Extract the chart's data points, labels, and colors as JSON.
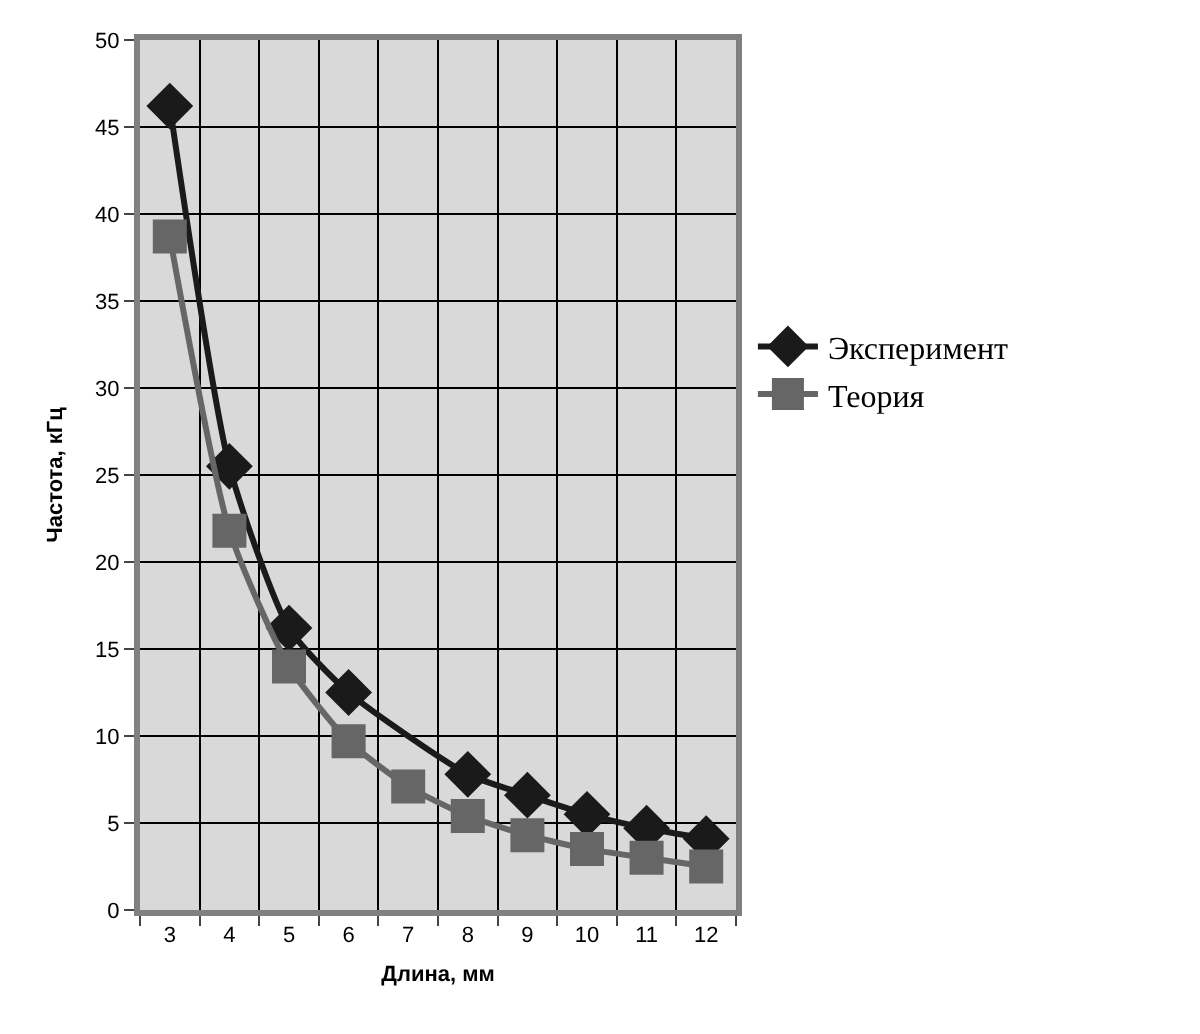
{
  "chart_data": {
    "type": "line",
    "xlabel": "Длина, мм",
    "ylabel": "Частота, кГц",
    "categories": [
      "3",
      "4",
      "5",
      "6",
      "7",
      "8",
      "9",
      "10",
      "11",
      "12"
    ],
    "series": [
      {
        "name": "Эксперимент",
        "color": "#1a1a1a",
        "marker": "diamond",
        "values": [
          46.2,
          25.5,
          16.2,
          12.5,
          null,
          7.8,
          6.6,
          5.5,
          4.7,
          4.1
        ]
      },
      {
        "name": "Теория",
        "color": "#666666",
        "marker": "square",
        "values": [
          38.7,
          21.8,
          14.0,
          9.7,
          7.1,
          5.4,
          4.3,
          3.5,
          3.0,
          2.5
        ]
      }
    ],
    "ylim": [
      0,
      50
    ],
    "yticks": [
      0,
      5,
      10,
      15,
      20,
      25,
      30,
      35,
      40,
      45,
      50
    ],
    "grid": true,
    "legend": "right"
  }
}
